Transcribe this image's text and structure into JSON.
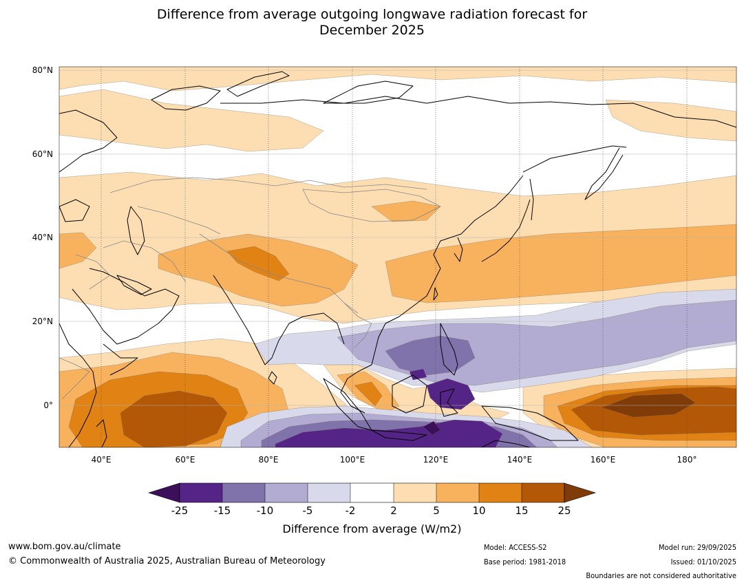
{
  "title": {
    "line1": "Difference from average outgoing longwave radiation forecast for",
    "line2": "December 2025"
  },
  "map": {
    "lat_labels": [
      "80°N",
      "60°N",
      "40°N",
      "20°N",
      "0°"
    ],
    "lon_labels": [
      "40°E",
      "60°E",
      "80°E",
      "100°E",
      "120°E",
      "140°E",
      "160°E",
      "180°"
    ],
    "extent": {
      "lon_min": 30,
      "lon_max": 192,
      "lat_min": -10,
      "lat_max": 81
    },
    "background": "#ffffff",
    "coastline_color": "#000000",
    "border_color": "#888888"
  },
  "colorbar": {
    "ticks": [
      "-25",
      "-15",
      "-10",
      "-5",
      "-2",
      "2",
      "5",
      "10",
      "15",
      "25"
    ],
    "label": "Difference from average (W/m2)",
    "colors": {
      "below_min": "#3b0f5a",
      "n25_n15": "#542587",
      "n15_n10": "#8073ac",
      "n10_n5": "#b2abd2",
      "n5_n2": "#d8daeb",
      "n2_p2": "#ffffff",
      "p2_p5": "#fddeb2",
      "p5_p10": "#f8b25e",
      "p10_p15": "#e08214",
      "p15_p25": "#b35806",
      "above_max": "#7f3b08"
    }
  },
  "footer": {
    "website": "www.bom.gov.au/climate",
    "copyright": "© Commonwealth of Australia 2025, Australian Bureau of Meteorology",
    "model": "Model: ACCESS-S2",
    "base_period": "Base period: 1981-2018",
    "model_run": "Model run: 29/09/2025",
    "issued": "Issued: 01/10/2025",
    "disclaimer": "Boundaries are not considered authoritative"
  }
}
